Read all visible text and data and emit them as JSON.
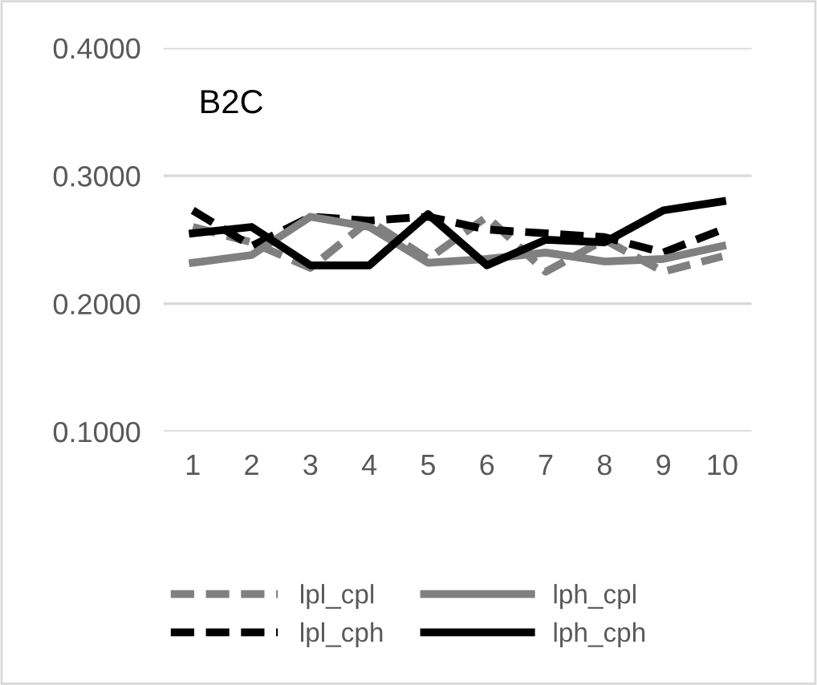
{
  "chart_data": {
    "type": "line",
    "title": "B2C",
    "categories": [
      "1",
      "2",
      "3",
      "4",
      "5",
      "6",
      "7",
      "8",
      "9",
      "10"
    ],
    "ylim": [
      0.1,
      0.4
    ],
    "yticks": [
      {
        "value": 0.1,
        "label": "0.1000"
      },
      {
        "value": 0.2,
        "label": "0.2000"
      },
      {
        "value": 0.3,
        "label": "0.3000"
      },
      {
        "value": 0.4,
        "label": "0.4000"
      }
    ],
    "grid": "y",
    "legend": "bottom",
    "marker": "none",
    "series": [
      {
        "name": "lpl_cpl",
        "color": "#808080",
        "line_style": "dashed",
        "values": [
          0.26,
          0.248,
          0.228,
          0.265,
          0.235,
          0.268,
          0.225,
          0.25,
          0.225,
          0.237
        ]
      },
      {
        "name": "lpl_cph",
        "color": "#000000",
        "line_style": "dashed",
        "values": [
          0.273,
          0.245,
          0.268,
          0.265,
          0.268,
          0.258,
          0.255,
          0.252,
          0.24,
          0.258
        ]
      },
      {
        "name": "lph_cpl",
        "color": "#808080",
        "line_style": "solid",
        "values": [
          0.232,
          0.238,
          0.268,
          0.26,
          0.232,
          0.235,
          0.24,
          0.233,
          0.235,
          0.245
        ]
      },
      {
        "name": "lph_cph",
        "color": "#000000",
        "line_style": "solid",
        "values": [
          0.255,
          0.26,
          0.23,
          0.23,
          0.27,
          0.23,
          0.25,
          0.248,
          0.273,
          0.28
        ]
      }
    ]
  }
}
